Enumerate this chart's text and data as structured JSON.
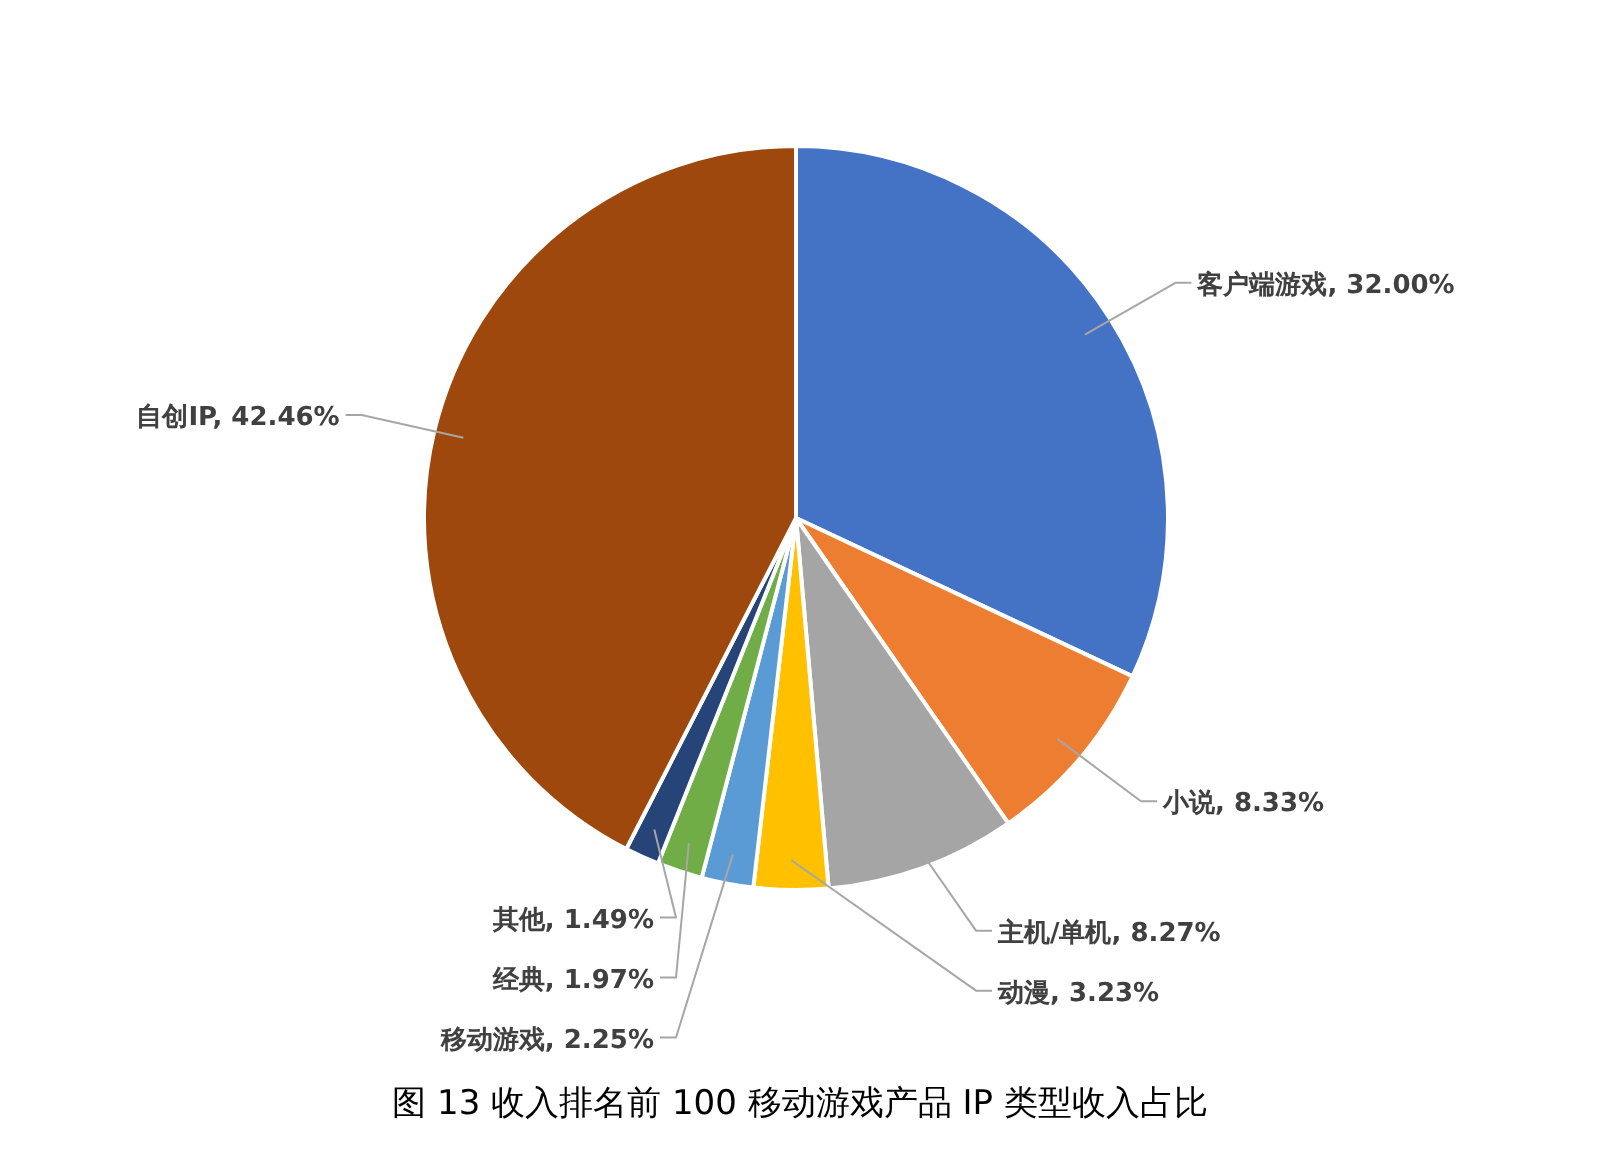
{
  "chart_data": {
    "type": "pie",
    "title": "图 13 收入排名前 100 移动游戏产品 IP 类型收入占比",
    "categories": [
      "客户端游戏",
      "小说",
      "主机/单机",
      "动漫",
      "移动游戏",
      "经典",
      "其他",
      "自创IP"
    ],
    "values": [
      32.0,
      8.33,
      8.27,
      3.23,
      2.25,
      1.97,
      1.49,
      42.46
    ],
    "colors": [
      "#4472c4",
      "#ed7d31",
      "#a5a5a5",
      "#ffc000",
      "#5b9bd5",
      "#70ad47",
      "#264478",
      "#9e480e"
    ],
    "value_labels": [
      "32.00%",
      "8.33%",
      "8.27%",
      "3.23%",
      "2.25%",
      "1.97%",
      "1.49%",
      "42.46%"
    ],
    "legend": false
  }
}
